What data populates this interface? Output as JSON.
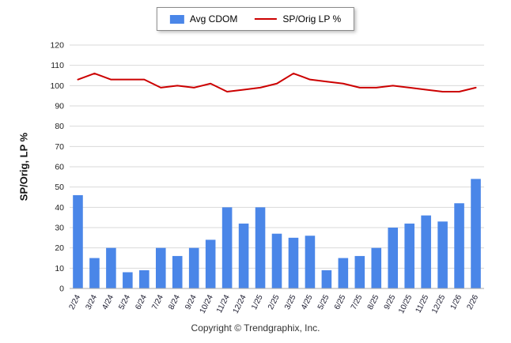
{
  "legend": {
    "bar_label": "Avg CDOM",
    "line_label": "SP/Orig LP %"
  },
  "ylabel": "SP/Orig, LP %",
  "footer": "Copyright © Trendgraphix, Inc.",
  "colors": {
    "bar": "#4a86e8",
    "line": "#cc0000",
    "grid": "#d9d9d9",
    "axis": "#aaaaaa",
    "tick_text": "#222222"
  },
  "chart_data": {
    "type": "bar+line",
    "title": "",
    "xlabel": "",
    "ylabel": "SP/Orig, LP %",
    "ylim": [
      0,
      120
    ],
    "ytick_step": 10,
    "grid": true,
    "legend_position": "top",
    "categories": [
      "2/24",
      "3/24",
      "4/24",
      "5/24",
      "6/24",
      "7/24",
      "8/24",
      "9/24",
      "10/24",
      "11/24",
      "12/24",
      "1/25",
      "2/25",
      "3/25",
      "4/25",
      "5/25",
      "6/25",
      "7/25",
      "8/25",
      "9/25",
      "10/25",
      "11/25",
      "12/25",
      "1/26",
      "2/26"
    ],
    "series": [
      {
        "name": "Avg CDOM",
        "type": "bar",
        "values": [
          46,
          15,
          20,
          8,
          9,
          20,
          16,
          20,
          24,
          40,
          32,
          40,
          27,
          25,
          26,
          9,
          15,
          16,
          20,
          30,
          32,
          36,
          33,
          42,
          54
        ]
      },
      {
        "name": "SP/Orig LP %",
        "type": "line",
        "values": [
          103,
          106,
          103,
          103,
          103,
          99,
          100,
          99,
          101,
          97,
          98,
          99,
          101,
          106,
          103,
          102,
          101,
          99,
          99,
          100,
          99,
          98,
          97,
          97,
          99
        ]
      }
    ]
  }
}
